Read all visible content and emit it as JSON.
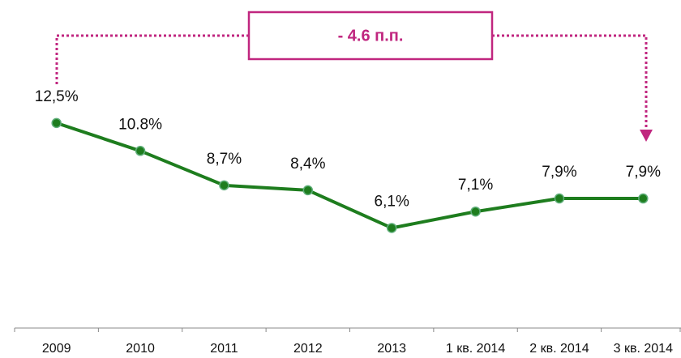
{
  "chart_data": {
    "type": "line",
    "annotation": "- 4.6 п.п.",
    "categories": [
      "2009",
      "2010",
      "2011",
      "2012",
      "2013",
      "1 кв. 2014",
      "2 кв. 2014",
      "3 кв. 2014"
    ],
    "series": [
      {
        "color": "#1e7d1e",
        "values": [
          12.5,
          10.8,
          8.7,
          8.4,
          6.1,
          7.1,
          7.9,
          7.9
        ],
        "value_labels": [
          "12,5%",
          "10.8%",
          "8,7%",
          "8,4%",
          "6,1%",
          "7,1%",
          "7,9%",
          "7,9%"
        ]
      }
    ],
    "ylim": [
      0,
      20
    ]
  }
}
